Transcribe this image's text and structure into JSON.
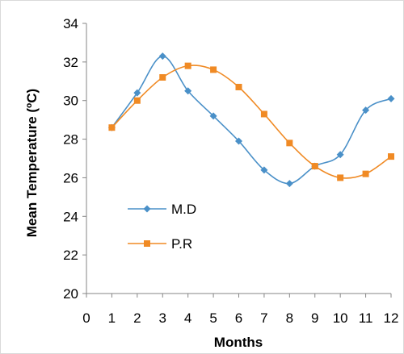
{
  "chart_data": {
    "type": "line",
    "xlabel": "Months",
    "ylabel": "Mean Temperature (ºC)",
    "xlim": [
      0,
      12
    ],
    "ylim": [
      20,
      34
    ],
    "x_ticks": [
      "0",
      "1",
      "2",
      "3",
      "4",
      "5",
      "6",
      "7",
      "8",
      "9",
      "10",
      "11",
      "12"
    ],
    "y_ticks": [
      "20",
      "22",
      "24",
      "26",
      "28",
      "30",
      "32",
      "34"
    ],
    "grid": false,
    "smooth": true,
    "legend_position": "left",
    "x": [
      1,
      2,
      3,
      4,
      5,
      6,
      7,
      8,
      9,
      10,
      11,
      12
    ],
    "series": [
      {
        "name": "M.D",
        "color": "#4a90c8",
        "marker": "diamond",
        "values": [
          28.6,
          30.4,
          32.3,
          30.5,
          29.2,
          27.9,
          26.4,
          25.7,
          26.6,
          27.2,
          29.5,
          30.1
        ]
      },
      {
        "name": "P.R",
        "color": "#f08a24",
        "marker": "square",
        "values": [
          28.6,
          30.0,
          31.2,
          31.8,
          31.6,
          30.7,
          29.3,
          27.8,
          26.6,
          26.0,
          26.2,
          27.1
        ]
      }
    ]
  }
}
